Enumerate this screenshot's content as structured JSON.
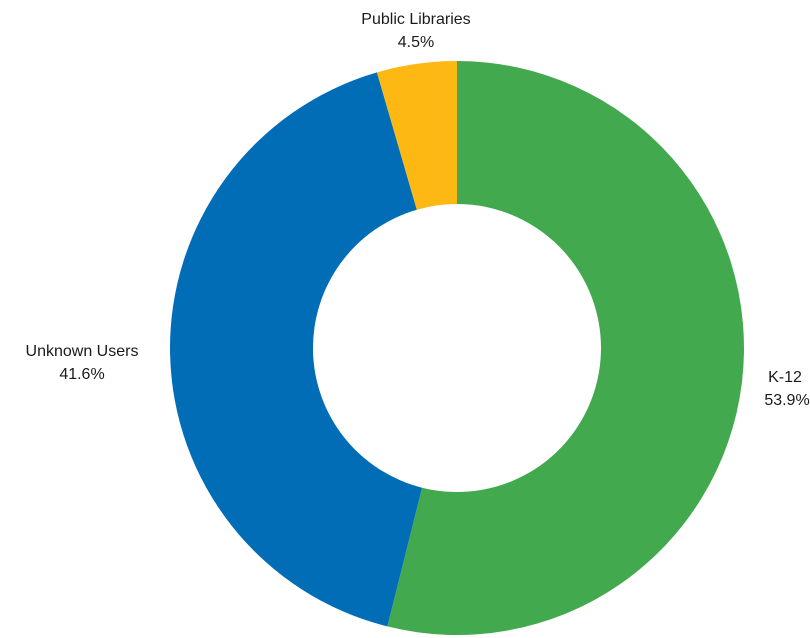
{
  "chart_data": {
    "type": "pie",
    "donut": true,
    "title": "",
    "legend": "none",
    "categories": [
      "K-12",
      "Unknown Users",
      "Public Libraries"
    ],
    "values": [
      53.9,
      41.6,
      4.5
    ],
    "value_labels": [
      "53.9%",
      "41.6%",
      "4.5%"
    ],
    "colors": [
      "#43A94F",
      "#006DB6",
      "#FDB813"
    ],
    "start": "top, clockwise"
  }
}
